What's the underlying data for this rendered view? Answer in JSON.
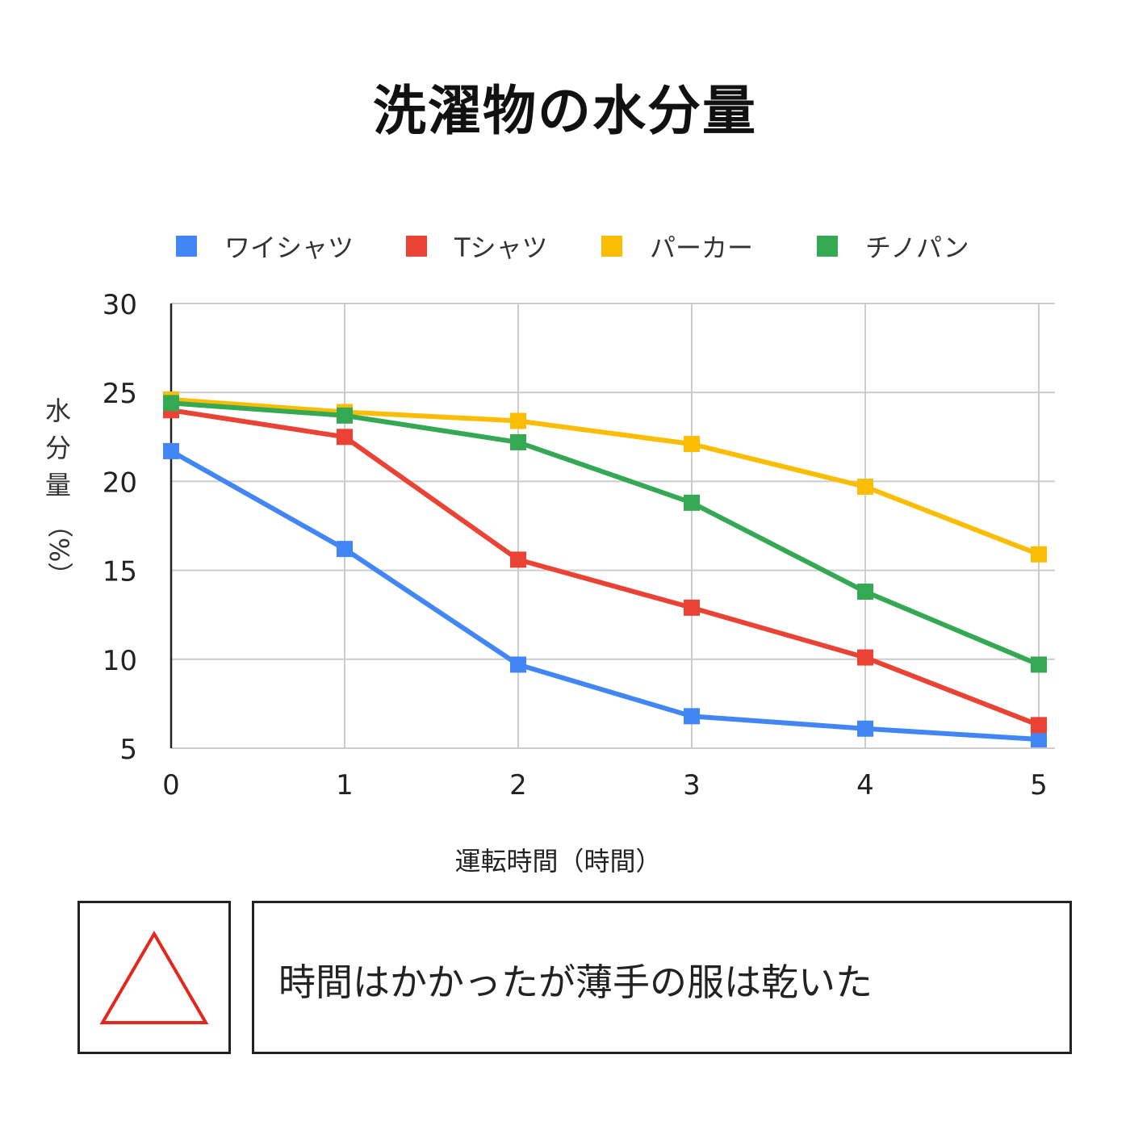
{
  "chart_data": {
    "type": "line",
    "title": "洗濯物の水分量",
    "xlabel": "運転時間（時間）",
    "ylabel_main": "水分量",
    "ylabel_unit": "（%）",
    "x": [
      0,
      1,
      2,
      3,
      4,
      5
    ],
    "x_ticks": [
      "0",
      "1",
      "2",
      "3",
      "4",
      "5"
    ],
    "y_ticks": [
      "5",
      "10",
      "15",
      "20",
      "25",
      "30"
    ],
    "ylim": [
      5,
      30
    ],
    "xlim": [
      0,
      5
    ],
    "grid": true,
    "legend_position": "top",
    "series": [
      {
        "name": "ワイシャツ",
        "color": "#4285F4",
        "values": [
          21.7,
          16.2,
          9.7,
          6.8,
          6.1,
          5.5
        ]
      },
      {
        "name": "Tシャツ",
        "color": "#EA4335",
        "values": [
          24.0,
          22.5,
          15.6,
          12.9,
          10.1,
          6.3
        ]
      },
      {
        "name": "パーカー",
        "color": "#FBBC04",
        "values": [
          24.6,
          23.9,
          23.4,
          22.1,
          19.7,
          15.9
        ]
      },
      {
        "name": "チノパン",
        "color": "#34A853",
        "values": [
          24.4,
          23.7,
          22.2,
          18.8,
          13.8,
          9.7
        ]
      }
    ]
  },
  "summary": {
    "rating_icon": "triangle-icon",
    "rating_color": "#E5261D",
    "comment": "時間はかかったが薄手の服は乾いた"
  }
}
